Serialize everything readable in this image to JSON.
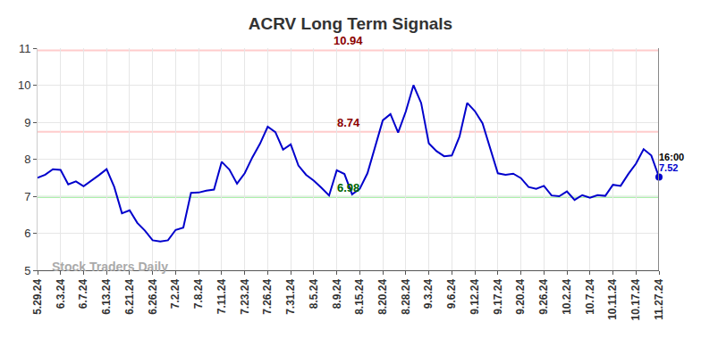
{
  "chart_data": {
    "type": "line",
    "title": "ACRV Long Term Signals",
    "categories": [
      "5.29.24",
      null,
      null,
      "6.3.24",
      null,
      null,
      "6.7.24",
      null,
      null,
      "6.13.24",
      null,
      null,
      "6.21.24",
      null,
      null,
      "6.26.24",
      null,
      null,
      "7.2.24",
      null,
      null,
      "7.8.24",
      null,
      null,
      "7.11.24",
      null,
      null,
      "7.23.24",
      null,
      null,
      "7.26.24",
      null,
      null,
      "7.31.24",
      null,
      null,
      "8.5.24",
      null,
      null,
      "8.9.24",
      null,
      null,
      "8.15.24",
      null,
      null,
      "8.20.24",
      null,
      null,
      "8.28.24",
      null,
      null,
      "9.3.24",
      null,
      null,
      "9.6.24",
      null,
      null,
      "9.12.24",
      null,
      null,
      "9.17.24",
      null,
      null,
      "9.20.24",
      null,
      null,
      "9.26.24",
      null,
      null,
      "10.2.24",
      null,
      null,
      "10.7.24",
      null,
      null,
      "10.11.24",
      null,
      null,
      "10.17.24",
      null,
      null,
      "11.27.24"
    ],
    "values": [
      7.5,
      7.58,
      7.73,
      7.71,
      7.32,
      7.4,
      7.27,
      7.41,
      7.57,
      7.73,
      7.25,
      6.54,
      6.62,
      6.28,
      6.07,
      5.81,
      5.78,
      5.81,
      6.09,
      6.15,
      7.09,
      7.1,
      7.15,
      7.18,
      7.93,
      7.72,
      7.34,
      7.62,
      8.05,
      8.42,
      8.88,
      8.73,
      8.26,
      8.4,
      7.83,
      7.58,
      7.42,
      7.23,
      7.02,
      7.7,
      7.6,
      7.05,
      7.2,
      7.62,
      8.35,
      9.05,
      9.22,
      8.72,
      9.29,
      10.0,
      9.52,
      8.43,
      8.22,
      8.08,
      8.1,
      8.61,
      9.52,
      9.3,
      8.97,
      8.28,
      7.62,
      7.58,
      7.61,
      7.49,
      7.25,
      7.2,
      7.28,
      7.02,
      7.0,
      7.13,
      6.9,
      7.03,
      6.96,
      7.03,
      7.01,
      7.31,
      7.28,
      7.6,
      7.88,
      8.27,
      8.1,
      7.52
    ],
    "color": "#0000cc",
    "ylim": [
      5,
      11
    ],
    "yticks": [
      5,
      6,
      7,
      8,
      9,
      10,
      11
    ],
    "grid": true,
    "reference_lines": [
      {
        "value": 10.94,
        "color": "#ffcccc",
        "label_color": "#8b0000"
      },
      {
        "value": 8.74,
        "color": "#ffcccc",
        "label_color": "#8b0000"
      },
      {
        "value": 6.98,
        "color": "#90ee90",
        "label_color": "#006400"
      }
    ],
    "last_time": "16:00",
    "watermark": "Stock Traders Daily"
  }
}
